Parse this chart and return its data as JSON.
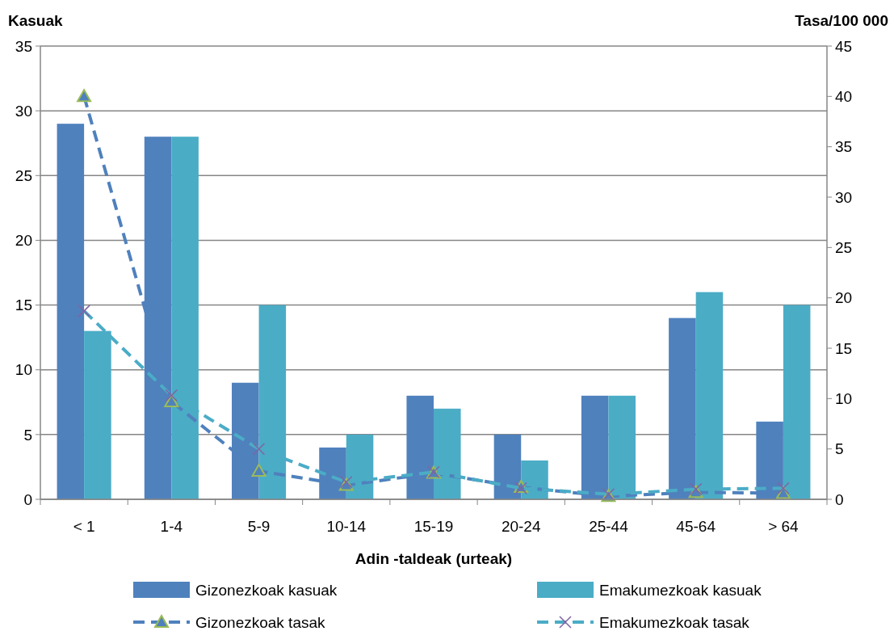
{
  "chart_data": {
    "type": "bar",
    "xlabel": "Adin -taldeak (urteak)",
    "ylabel": "Kasuak",
    "y2label": "Tasa/100 000",
    "categories": [
      "< 1",
      "1-4",
      "5-9",
      "10-14",
      "15-19",
      "20-24",
      "25-44",
      "45-64",
      "> 64"
    ],
    "series": [
      {
        "name": "Gizonezkoak kasuak",
        "color": "#4f81bd",
        "values": [
          29,
          28,
          9,
          4,
          8,
          5,
          8,
          14,
          6
        ]
      },
      {
        "name": "Emakumezkoak kasuak",
        "color": "#4bacc6",
        "values": [
          13,
          28,
          15,
          5,
          7,
          3,
          8,
          16,
          15
        ]
      },
      {
        "name": "Gizonezkoak tasak",
        "type": "line",
        "axis": "y2",
        "color": "#4f81bd",
        "marker": "triangle",
        "line_style": "dashed",
        "values": [
          40,
          9.7,
          2.8,
          1.4,
          2.6,
          1.2,
          0.3,
          0.7,
          0.6
        ]
      },
      {
        "name": "Emakumezkoak tasak",
        "type": "line",
        "axis": "y2",
        "color": "#4bacc6",
        "marker": "cross",
        "line_style": "dashed",
        "values": [
          18.7,
          10.3,
          5,
          1.7,
          2.7,
          1.1,
          0.5,
          1,
          1.1
        ]
      }
    ],
    "ylim": [
      0,
      35
    ],
    "yticks": [
      0,
      5,
      10,
      15,
      20,
      25,
      30,
      35
    ],
    "y2lim": [
      0,
      45
    ],
    "y2ticks": [
      0,
      5,
      10,
      15,
      20,
      25,
      30,
      35,
      40,
      45
    ],
    "grid": "y",
    "legend": "bottom"
  }
}
